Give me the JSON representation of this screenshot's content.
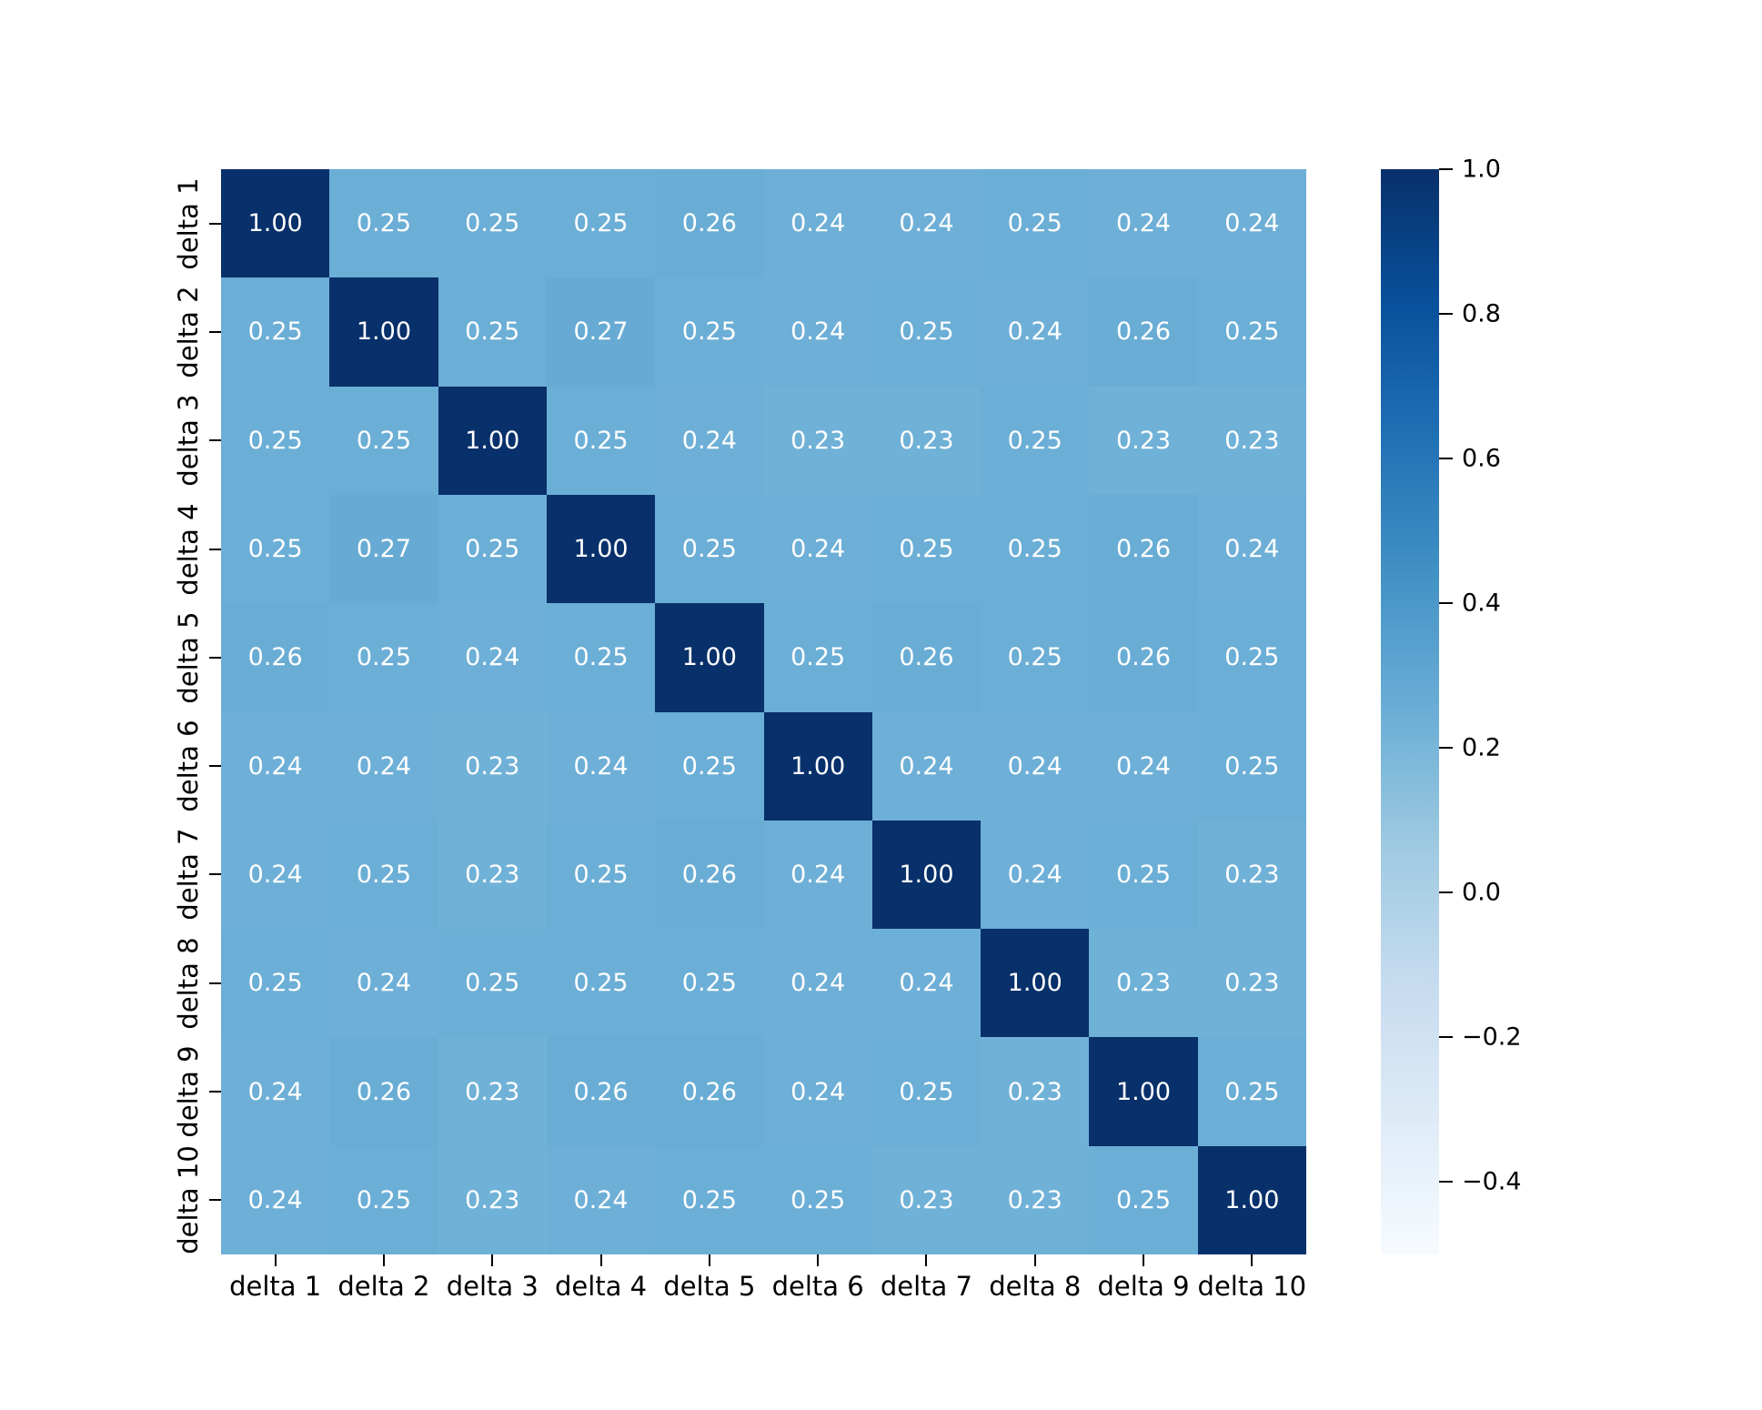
{
  "chart_data": {
    "type": "heatmap",
    "title": "",
    "x_tick_labels": [
      "delta 1",
      "delta 2",
      "delta 3",
      "delta 4",
      "delta 5",
      "delta 6",
      "delta 7",
      "delta 8",
      "delta 9",
      "delta 10"
    ],
    "y_tick_labels": [
      "delta 1",
      "delta 2",
      "delta 3",
      "delta 4",
      "delta 5",
      "delta 6",
      "delta 7",
      "delta 8",
      "delta 9",
      "delta 10"
    ],
    "matrix": [
      [
        1.0,
        0.25,
        0.25,
        0.25,
        0.26,
        0.24,
        0.24,
        0.25,
        0.24,
        0.24
      ],
      [
        0.25,
        1.0,
        0.25,
        0.27,
        0.25,
        0.24,
        0.25,
        0.24,
        0.26,
        0.25
      ],
      [
        0.25,
        0.25,
        1.0,
        0.25,
        0.24,
        0.23,
        0.23,
        0.25,
        0.23,
        0.23
      ],
      [
        0.25,
        0.27,
        0.25,
        1.0,
        0.25,
        0.24,
        0.25,
        0.25,
        0.26,
        0.24
      ],
      [
        0.26,
        0.25,
        0.24,
        0.25,
        1.0,
        0.25,
        0.26,
        0.25,
        0.26,
        0.25
      ],
      [
        0.24,
        0.24,
        0.23,
        0.24,
        0.25,
        1.0,
        0.24,
        0.24,
        0.24,
        0.25
      ],
      [
        0.24,
        0.25,
        0.23,
        0.25,
        0.26,
        0.24,
        1.0,
        0.24,
        0.25,
        0.23
      ],
      [
        0.25,
        0.24,
        0.25,
        0.25,
        0.25,
        0.24,
        0.24,
        1.0,
        0.23,
        0.23
      ],
      [
        0.24,
        0.26,
        0.23,
        0.26,
        0.26,
        0.24,
        0.25,
        0.23,
        1.0,
        0.25
      ],
      [
        0.24,
        0.25,
        0.23,
        0.24,
        0.25,
        0.25,
        0.23,
        0.23,
        0.25,
        1.0
      ]
    ],
    "annotation_decimals": 2,
    "annotation_text_color": "#ffffff",
    "axis_text_color": "#000000",
    "background_color": "#ffffff",
    "colormap": "Blues",
    "colormap_stops": [
      "#f7fbff",
      "#deebf7",
      "#c6dbef",
      "#9ecae1",
      "#6baed6",
      "#4292c6",
      "#2171b5",
      "#08519c",
      "#08306b"
    ],
    "vmin": -0.5,
    "vmax": 1.0,
    "diagonal_color": "#08306b",
    "offdiagonal_mid_color": "#6baed6",
    "legend_position": "right",
    "grid": false,
    "colorbar": {
      "tick_values": [
        1.0,
        0.8,
        0.6,
        0.4,
        0.2,
        0.0,
        -0.2,
        -0.4
      ],
      "tick_labels": [
        "1.0",
        "0.8",
        "0.6",
        "0.4",
        "0.2",
        "0.0",
        "−0.2",
        "−0.4"
      ]
    }
  }
}
